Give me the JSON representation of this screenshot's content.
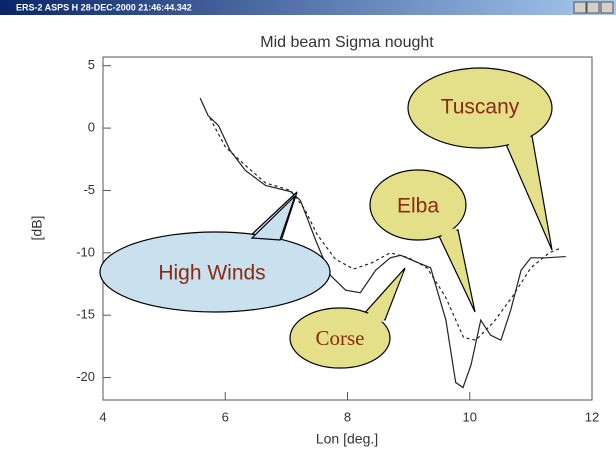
{
  "window_title": "ERS-2 ASPS H 28-DEC-2000 21:46:44.342",
  "chart_data": {
    "type": "line",
    "title": "Mid beam Sigma nought",
    "x_label": "Lon [deg.]",
    "y_label": "[dB]",
    "xlim": [
      4,
      12
    ],
    "xticks": [
      4,
      6,
      8,
      10,
      12
    ],
    "ylim": [
      -21.8,
      5.7
    ],
    "yticks": [
      -20,
      -15,
      -10,
      -5,
      0,
      5
    ],
    "series": [
      {
        "color": "#222222",
        "dash": false,
        "x": [
          5.59,
          5.72,
          5.89,
          6.08,
          6.33,
          6.66,
          7.07,
          7.23,
          7.48,
          7.72,
          7.97,
          8.21,
          8.46,
          8.7,
          8.87,
          9.11,
          9.36,
          9.61,
          9.77,
          9.89,
          10.02,
          10.18,
          10.34,
          10.51,
          10.67,
          10.84,
          11.0,
          11.25,
          11.57
        ],
        "values": [
          2.4,
          1.0,
          0.2,
          -1.8,
          -3.4,
          -4.6,
          -5.1,
          -5.8,
          -9.0,
          -11.8,
          -13.0,
          -13.2,
          -11.4,
          -10.4,
          -10.2,
          -10.7,
          -11.2,
          -15.4,
          -20.4,
          -20.8,
          -19.0,
          -15.4,
          -16.6,
          -17.0,
          -14.6,
          -11.4,
          -10.4,
          -10.4,
          -10.3
        ]
      },
      {
        "color": "#222222",
        "dash": true,
        "x": [
          5.75,
          6.0,
          6.33,
          6.66,
          7.07,
          7.3,
          7.5,
          7.8,
          8.1,
          8.4,
          8.7,
          9.0,
          9.3,
          9.6,
          9.9,
          10.1,
          10.4,
          10.7,
          11.0,
          11.3,
          11.5
        ],
        "values": [
          0.8,
          -1.5,
          -3.0,
          -4.4,
          -5.0,
          -6.5,
          -8.5,
          -10.5,
          -11.3,
          -10.8,
          -10.0,
          -10.4,
          -11.2,
          -13.5,
          -16.8,
          -17.0,
          -15.5,
          -13.5,
          -11.2,
          -10.0,
          -9.6
        ]
      }
    ],
    "annotations": [
      "High Winds",
      "Corse",
      "Elba",
      "Tuscany"
    ]
  }
}
